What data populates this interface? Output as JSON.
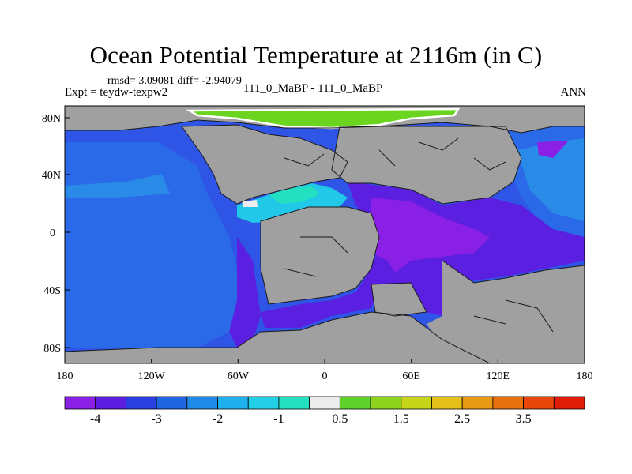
{
  "header": {
    "title": "Ocean Potential Temperature at 2116m (in C)",
    "stats": "rmsd= 3.09081 diff= -2.94079",
    "experiment": "Expt = teydw-texpw2",
    "case": "111_0_MaBP - 111_0_MaBP",
    "season": "ANN"
  },
  "axes": {
    "lon_labels": [
      "180",
      "120W",
      "60W",
      "0",
      "60E",
      "120E",
      "180"
    ],
    "lat_labels": [
      "80N",
      "40N",
      "0",
      "40S",
      "80S"
    ]
  },
  "colorbar": {
    "colors": [
      "#8a1fe6",
      "#5b1ee0",
      "#2b3ee0",
      "#1f64e0",
      "#1f8ae8",
      "#1fb0ee",
      "#22cfe6",
      "#22e0c0",
      "#ececec",
      "#5ed12a",
      "#8fd21e",
      "#c6d41a",
      "#e6c01a",
      "#e89a14",
      "#e8700e",
      "#e8460a",
      "#e01c06"
    ],
    "labels": [
      "-4",
      "-3",
      "-2",
      "-1",
      "0.5",
      "1.5",
      "2.5",
      "3.5"
    ]
  },
  "colors": {
    "land": "#a0a0a0",
    "ocean_deep_blue": "#2f55e6",
    "ocean_blue": "#2a6ae8",
    "purple": "#5a1fe0",
    "violet": "#8a1fe6",
    "cyan": "#22c8e8",
    "green": "#6ad41e"
  }
}
